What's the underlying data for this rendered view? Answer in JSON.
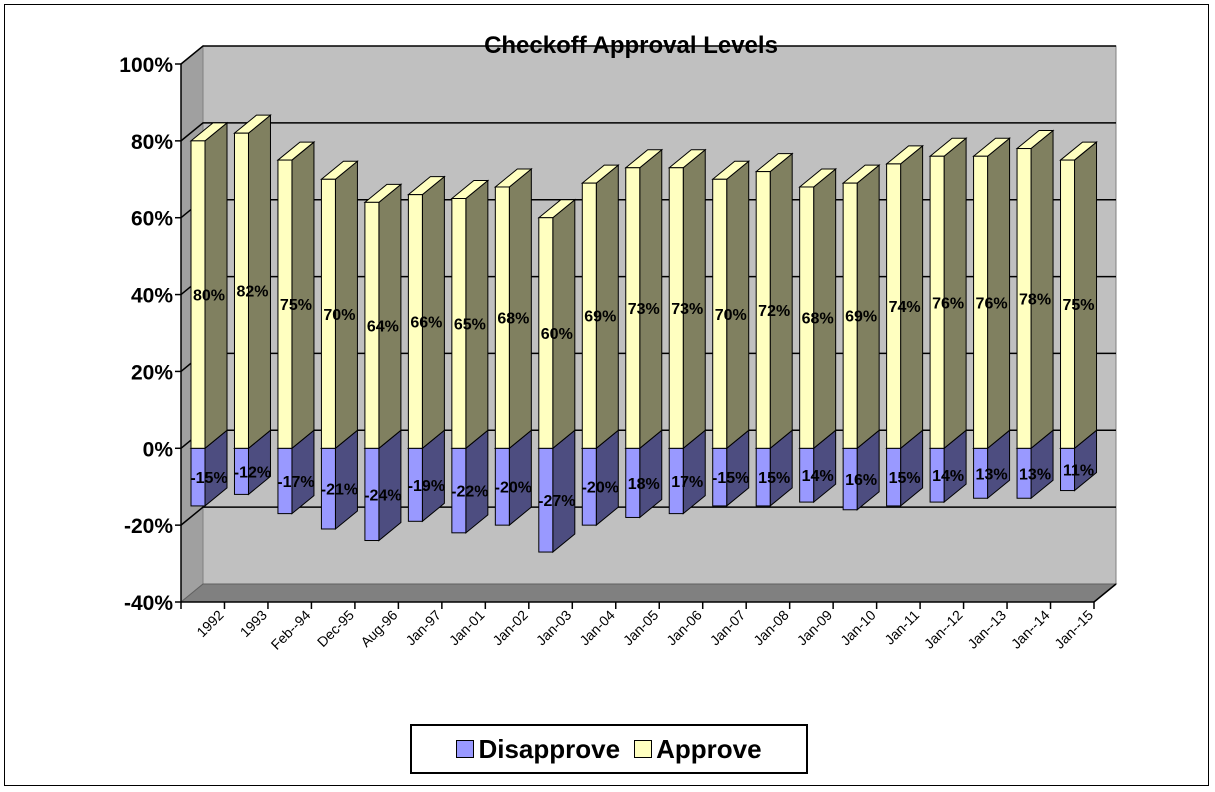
{
  "chart_data": {
    "type": "bar",
    "title": "Checkoff Approval Levels",
    "categories": [
      "1992",
      "1993",
      "Feb--94",
      "Dec-95",
      "Aug-96",
      "Jan-97",
      "Jan-01",
      "Jan-02",
      "Jan-03",
      "Jan-04",
      "Jan-05",
      "Jan-06",
      "Jan-07",
      "Jan-08",
      "Jan-09",
      "Jan-10",
      "Jan-11",
      "Jan--12",
      "Jan--13",
      "Jan--14",
      "Jan--15"
    ],
    "series": [
      {
        "name": "Disapprove",
        "values": [
          -15,
          -12,
          -17,
          -21,
          -24,
          -19,
          -22,
          -20,
          -27,
          -20,
          -18,
          -17,
          -15,
          -15,
          -14,
          -16,
          -15,
          -14,
          -13,
          -13,
          -11
        ],
        "labels": [
          "-15%",
          "-12%",
          "-17%",
          "-21%",
          "-24%",
          "-19%",
          "-22%",
          "-20%",
          "-27%",
          "-20%",
          "18%",
          "17%",
          "-15%",
          "15%",
          "14%",
          "16%",
          "15%",
          "14%",
          "13%",
          "13%",
          "11%"
        ],
        "color": "#9999ff"
      },
      {
        "name": "Approve",
        "values": [
          80,
          82,
          75,
          70,
          64,
          66,
          65,
          68,
          60,
          69,
          73,
          73,
          70,
          72,
          68,
          69,
          74,
          76,
          76,
          78,
          75
        ],
        "labels": [
          "80%",
          "82%",
          "75%",
          "70%",
          "64%",
          "66%",
          "65%",
          "68%",
          "60%",
          "69%",
          "73%",
          "73%",
          "70%",
          "72%",
          "68%",
          "69%",
          "74%",
          "76%",
          "76%",
          "78%",
          "75%"
        ],
        "color": "#ffffc0"
      }
    ],
    "y_ticks": [
      "100%",
      "80%",
      "60%",
      "40%",
      "20%",
      "0%",
      "-20%",
      "-40%"
    ],
    "ylim": [
      -40,
      100
    ],
    "grid": true,
    "legend": "bottom"
  },
  "colors": {
    "plot_back": "#c0c0c0",
    "disapprove_front": "#9999ff",
    "disapprove_side": "#4d4d80",
    "approve_front": "#ffffc0",
    "approve_side": "#808060"
  }
}
